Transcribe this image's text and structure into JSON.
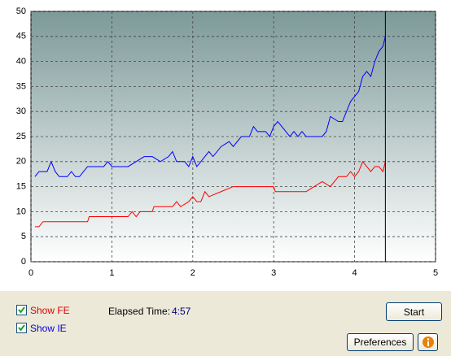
{
  "chart_data": {
    "type": "line",
    "xlim": [
      0,
      5
    ],
    "xticks": [
      0,
      1,
      2,
      3,
      4,
      5
    ],
    "ylim": [
      0,
      50
    ],
    "yticks": [
      0,
      5,
      10,
      15,
      20,
      25,
      30,
      35,
      40,
      45,
      50
    ],
    "grid": true,
    "marker_x": 4.38,
    "series": [
      {
        "name": "IE",
        "color": "#0000ff",
        "x": [
          0.05,
          0.1,
          0.2,
          0.25,
          0.3,
          0.35,
          0.45,
          0.5,
          0.55,
          0.6,
          0.7,
          0.8,
          0.9,
          0.95,
          1.0,
          1.1,
          1.2,
          1.3,
          1.4,
          1.5,
          1.6,
          1.7,
          1.75,
          1.8,
          1.9,
          1.95,
          2.0,
          2.05,
          2.1,
          2.2,
          2.25,
          2.35,
          2.45,
          2.5,
          2.6,
          2.7,
          2.75,
          2.8,
          2.9,
          2.95,
          3.0,
          3.05,
          3.1,
          3.2,
          3.25,
          3.3,
          3.35,
          3.4,
          3.5,
          3.6,
          3.65,
          3.7,
          3.8,
          3.85,
          3.95,
          4.05,
          4.1,
          4.15,
          4.2,
          4.25,
          4.3,
          4.35,
          4.38
        ],
        "values": [
          17,
          18,
          18,
          20,
          18,
          17,
          17,
          18,
          17,
          17,
          19,
          19,
          19,
          20,
          19,
          19,
          19,
          20,
          21,
          21,
          20,
          21,
          22,
          20,
          20,
          19,
          21,
          19,
          20,
          22,
          21,
          23,
          24,
          23,
          25,
          25,
          27,
          26,
          26,
          25,
          27,
          28,
          27,
          25,
          26,
          25,
          26,
          25,
          25,
          25,
          26,
          29,
          28,
          28,
          32,
          34,
          37,
          38,
          37,
          40,
          42,
          43,
          45
        ]
      },
      {
        "name": "FE",
        "color": "#ff0000",
        "x": [
          0.05,
          0.1,
          0.15,
          0.7,
          0.72,
          1.2,
          1.25,
          1.3,
          1.35,
          1.5,
          1.52,
          1.75,
          1.8,
          1.85,
          1.95,
          2.0,
          2.05,
          2.1,
          2.15,
          2.2,
          2.35,
          2.5,
          3.0,
          3.02,
          3.4,
          3.5,
          3.6,
          3.7,
          3.8,
          3.9,
          3.95,
          4.0,
          4.05,
          4.1,
          4.15,
          4.2,
          4.25,
          4.3,
          4.35,
          4.38
        ],
        "values": [
          7,
          7,
          8,
          8,
          9,
          9,
          10,
          9,
          10,
          10,
          11,
          11,
          12,
          11,
          12,
          13,
          12,
          12,
          14,
          13,
          14,
          15,
          15,
          14,
          14,
          15,
          16,
          15,
          17,
          17,
          18,
          17,
          18,
          20,
          19,
          18,
          19,
          19,
          18,
          20
        ]
      }
    ]
  },
  "controls": {
    "show_fe": "Show FE",
    "show_ie": "Show IE",
    "elapsed_label": "Elapsed Time:",
    "elapsed_value": "4:57",
    "start": "Start",
    "preferences": "Preferences"
  }
}
